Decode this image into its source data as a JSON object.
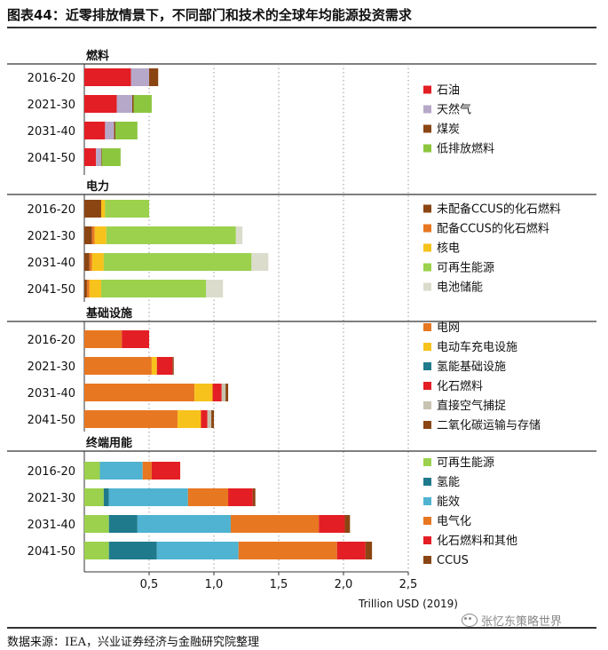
{
  "header": {
    "title": "图表44：近零排放情景下，不同部门和技术的全球年均能源投资需求"
  },
  "footer": {
    "source": "数据来源：IEA，兴业证券经济与金融研究院整理",
    "watermark": "张忆东策略世界",
    "watermark_icon": "wechat-icon"
  },
  "chart_data": {
    "type": "bar",
    "orientation": "horizontal",
    "stacked": true,
    "xlabel": "Trillion USD (2019)",
    "xlim": [
      0,
      2.5
    ],
    "x_ticks": [
      0.5,
      1.0,
      1.5,
      2.0,
      2.5
    ],
    "x_tick_labels": [
      "0,5",
      "1,0",
      "1,5",
      "2,0",
      "2,5"
    ],
    "grid": "vertical dotted",
    "legend_position": "right",
    "categories": [
      "2016-20",
      "2021-30",
      "2031-40",
      "2041-50"
    ],
    "panels": [
      {
        "title": "燃料",
        "series": [
          {
            "name": "石油",
            "color": "#e31e24",
            "values": [
              0.36,
              0.25,
              0.16,
              0.09
            ]
          },
          {
            "name": "天然气",
            "color": "#b6a8c8",
            "values": [
              0.14,
              0.12,
              0.07,
              0.04
            ]
          },
          {
            "name": "煤炭",
            "color": "#8b4513",
            "values": [
              0.07,
              0.01,
              0.01,
              0.005
            ]
          },
          {
            "name": "低排放燃料",
            "color": "#8cc63f",
            "values": [
              0.0,
              0.14,
              0.17,
              0.145
            ]
          }
        ]
      },
      {
        "title": "电力",
        "series": [
          {
            "name": "未配备CCUS的化石燃料",
            "color": "#8b4513",
            "values": [
              0.13,
              0.06,
              0.04,
              0.02
            ]
          },
          {
            "name": "配备CCUS的化石燃料",
            "color": "#e87722",
            "values": [
              0.0,
              0.02,
              0.02,
              0.02
            ]
          },
          {
            "name": "核电",
            "color": "#f7c21b",
            "values": [
              0.03,
              0.09,
              0.09,
              0.09
            ]
          },
          {
            "name": "可再生能源",
            "color": "#9bd14d",
            "values": [
              0.34,
              1.0,
              1.14,
              0.81
            ]
          },
          {
            "name": "电池储能",
            "color": "#dcdccd",
            "values": [
              0.0,
              0.05,
              0.13,
              0.13
            ]
          }
        ]
      },
      {
        "title": "基础设施",
        "series": [
          {
            "name": "电网",
            "color": "#e87722",
            "values": [
              0.29,
              0.52,
              0.85,
              0.72
            ]
          },
          {
            "name": "电动车充电设施",
            "color": "#f7c21b",
            "values": [
              0.0,
              0.04,
              0.14,
              0.18
            ]
          },
          {
            "name": "氢能基础设施",
            "color": "#1f7a8c",
            "values": [
              0.0,
              0.0,
              0.0,
              0.0
            ]
          },
          {
            "name": "化石燃料",
            "color": "#e31e24",
            "values": [
              0.21,
              0.12,
              0.07,
              0.05
            ]
          },
          {
            "name": "直接空气捕捉",
            "color": "#c7c3b0",
            "values": [
              0.0,
              0.0,
              0.03,
              0.03
            ]
          },
          {
            "name": "二氧化碳运输与存储",
            "color": "#8b4513",
            "values": [
              0.0,
              0.01,
              0.02,
              0.02
            ]
          }
        ]
      },
      {
        "title": "终端用能",
        "series": [
          {
            "name": "可再生能源",
            "color": "#9bd14d",
            "values": [
              0.12,
              0.15,
              0.19,
              0.19
            ]
          },
          {
            "name": "氢能",
            "color": "#1f7a8c",
            "values": [
              0.0,
              0.04,
              0.22,
              0.37
            ]
          },
          {
            "name": "能效",
            "color": "#4fb3d1",
            "values": [
              0.33,
              0.61,
              0.72,
              0.63
            ]
          },
          {
            "name": "电气化",
            "color": "#e87722",
            "values": [
              0.07,
              0.31,
              0.68,
              0.76
            ]
          },
          {
            "name": "化石燃料和其他",
            "color": "#e31e24",
            "values": [
              0.22,
              0.19,
              0.2,
              0.22
            ]
          },
          {
            "name": "CCUS",
            "color": "#8b4513",
            "values": [
              0.0,
              0.02,
              0.04,
              0.05
            ]
          }
        ]
      }
    ]
  }
}
